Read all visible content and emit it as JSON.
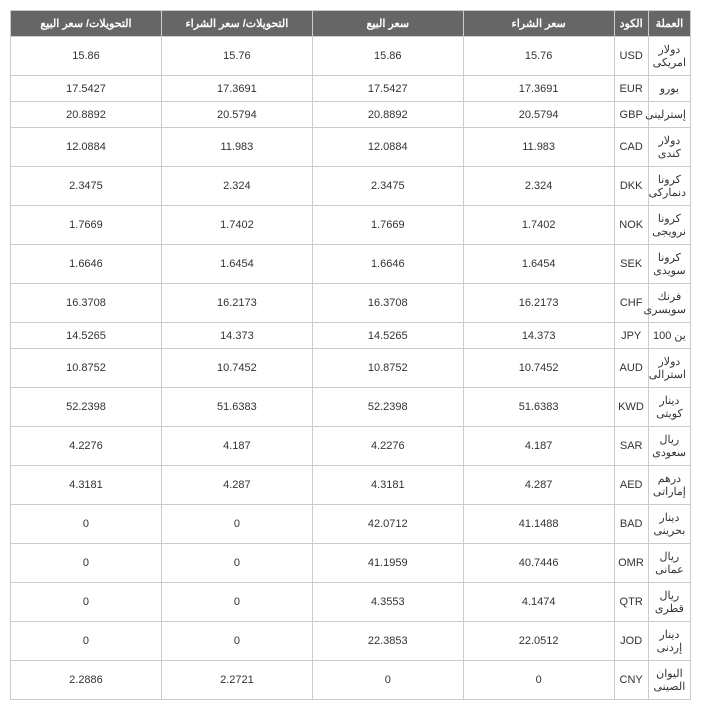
{
  "table": {
    "header_bg": "#666666",
    "header_fg": "#ffffff",
    "border_color": "#cccccc",
    "cell_fg": "#333333",
    "font_size": 11,
    "columns": [
      "العملة",
      "الكود",
      "سعر الشراء",
      "سعر البيع",
      "التحويلات/ سعر الشراء",
      "التحويلات/ سعر البيع"
    ],
    "rows": [
      {
        "currency": "دولار امريكى",
        "code": "USD",
        "buy": "15.76",
        "sell": "15.86",
        "tbuy": "15.76",
        "tsell": "15.86"
      },
      {
        "currency": "يورو",
        "code": "EUR",
        "buy": "17.3691",
        "sell": "17.5427",
        "tbuy": "17.3691",
        "tsell": "17.5427"
      },
      {
        "currency": "إسترلينى",
        "code": "GBP",
        "buy": "20.5794",
        "sell": "20.8892",
        "tbuy": "20.5794",
        "tsell": "20.8892"
      },
      {
        "currency": "دولار كندى",
        "code": "CAD",
        "buy": "11.983",
        "sell": "12.0884",
        "tbuy": "11.983",
        "tsell": "12.0884"
      },
      {
        "currency": "كرونا دنماركى",
        "code": "DKK",
        "buy": "2.324",
        "sell": "2.3475",
        "tbuy": "2.324",
        "tsell": "2.3475"
      },
      {
        "currency": "كرونا نرويجى",
        "code": "NOK",
        "buy": "1.7402",
        "sell": "1.7669",
        "tbuy": "1.7402",
        "tsell": "1.7669"
      },
      {
        "currency": "كرونا سويدى",
        "code": "SEK",
        "buy": "1.6454",
        "sell": "1.6646",
        "tbuy": "1.6454",
        "tsell": "1.6646"
      },
      {
        "currency": "فرنك سويسرى",
        "code": "CHF",
        "buy": "16.2173",
        "sell": "16.3708",
        "tbuy": "16.2173",
        "tsell": "16.3708"
      },
      {
        "currency": "ين 100",
        "code": "JPY",
        "buy": "14.373",
        "sell": "14.5265",
        "tbuy": "14.373",
        "tsell": "14.5265"
      },
      {
        "currency": "دولار استرالى",
        "code": "AUD",
        "buy": "10.7452",
        "sell": "10.8752",
        "tbuy": "10.7452",
        "tsell": "10.8752"
      },
      {
        "currency": "دينار كويتى",
        "code": "KWD",
        "buy": "51.6383",
        "sell": "52.2398",
        "tbuy": "51.6383",
        "tsell": "52.2398"
      },
      {
        "currency": "ريال سعودى",
        "code": "SAR",
        "buy": "4.187",
        "sell": "4.2276",
        "tbuy": "4.187",
        "tsell": "4.2276"
      },
      {
        "currency": "درهم إماراتى",
        "code": "AED",
        "buy": "4.287",
        "sell": "4.3181",
        "tbuy": "4.287",
        "tsell": "4.3181"
      },
      {
        "currency": "دينار بحرينى",
        "code": "BAD",
        "buy": "41.1488",
        "sell": "42.0712",
        "tbuy": "0",
        "tsell": "0"
      },
      {
        "currency": "ريال عمانى",
        "code": "OMR",
        "buy": "40.7446",
        "sell": "41.1959",
        "tbuy": "0",
        "tsell": "0"
      },
      {
        "currency": "ريال قطرى",
        "code": "QTR",
        "buy": "4.1474",
        "sell": "4.3553",
        "tbuy": "0",
        "tsell": "0"
      },
      {
        "currency": "دينار إردنى",
        "code": "JOD",
        "buy": "22.0512",
        "sell": "22.3853",
        "tbuy": "0",
        "tsell": "0"
      },
      {
        "currency": "اليوان الصينى",
        "code": "CNY",
        "buy": "0",
        "sell": "0",
        "tbuy": "2.2721",
        "tsell": "2.2886"
      }
    ]
  }
}
